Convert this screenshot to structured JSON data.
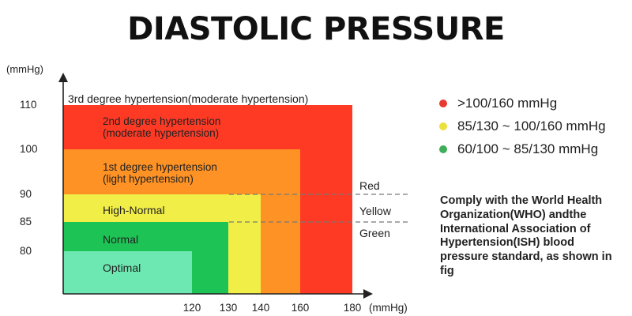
{
  "title": "DIASTOLIC PRESSURE",
  "chart_data": {
    "type": "nested-area",
    "title": "DIASTOLIC PRESSURE",
    "y_unit": "(mmHg)",
    "x_unit": "(mmHg)",
    "y_ticks": [
      80,
      85,
      90,
      100,
      110
    ],
    "x_ticks": [
      120,
      130,
      140,
      160,
      180
    ],
    "zones": [
      {
        "name": "3rd degree hypertension(moderate hypertension)",
        "x_max": 180,
        "y_max": 110,
        "color": "#ff3a24",
        "label_lines": [
          "3rd degree hypertension(moderate hypertension)"
        ]
      },
      {
        "name": "2nd degree hypertension (moderate hypertension)",
        "x_max": 180,
        "y_max": 110,
        "color": "#ff3a24",
        "label_lines": [
          "2nd degree hypertension",
          "(moderate hypertension)"
        ]
      },
      {
        "name": "1st degree hypertension (light hypertension)",
        "x_max": 160,
        "y_max": 100,
        "color": "#ff9224",
        "label_lines": [
          "1st degree hypertension",
          "(light hypertension)"
        ]
      },
      {
        "name": "High-Normal",
        "x_max": 140,
        "y_max": 90,
        "color": "#f2ee48",
        "label_lines": [
          "High-Normal"
        ]
      },
      {
        "name": "Normal",
        "x_max": 130,
        "y_max": 85,
        "color": "#1ec356",
        "label_lines": [
          "Normal"
        ]
      },
      {
        "name": "Optimal",
        "x_max": 120,
        "y_max": 80,
        "color": "#6ee8b2",
        "label_lines": [
          "Optimal"
        ]
      }
    ],
    "thresholds": [
      {
        "y": 90,
        "label": "Red"
      },
      {
        "y": 85,
        "label": "Yellow"
      },
      {
        "y": 85,
        "label": "Green"
      }
    ]
  },
  "legend": [
    {
      "color": "#e83a2e",
      "label": ">100/160 mmHg"
    },
    {
      "color": "#ece13c",
      "label": "85/130 ~ 100/160 mmHg"
    },
    {
      "color": "#3fae58",
      "label": "60/100 ~ 85/130 mmHg"
    }
  ],
  "note": "Comply with the World Health Organization(WHO) andthe International Association of Hypertension(ISH) blood pressure standard, as shown in fig"
}
